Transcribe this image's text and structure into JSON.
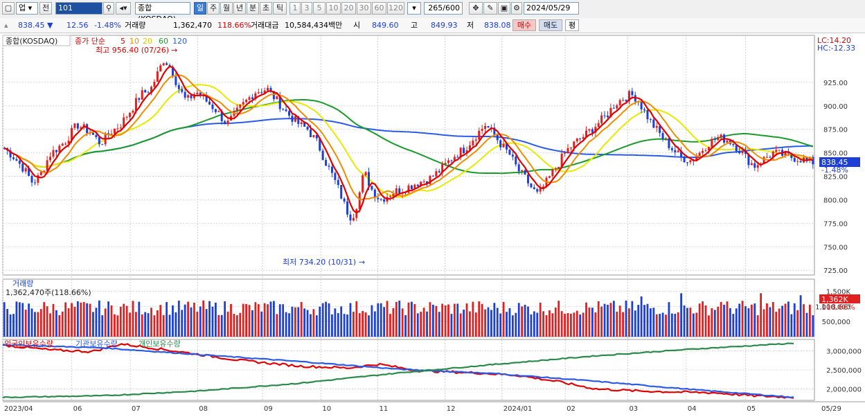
{
  "toolbar": {
    "market": "업",
    "market_prev": "전",
    "code": "101",
    "index_name": "종합(KOSDAQ)",
    "periods": [
      "일",
      "주",
      "월",
      "년",
      "분",
      "초",
      "틱"
    ],
    "selected_period": "일",
    "intervals": [
      "1",
      "3",
      "5",
      "10",
      "20",
      "30",
      "60",
      "120"
    ],
    "count": "265/600",
    "date": "2024/05/29"
  },
  "quote": {
    "price": "838.45",
    "arrow": "▼",
    "change": "12.56",
    "change_pct": "-1.48%",
    "volume_label": "거래량",
    "volume": "1,362,470",
    "volume_pct": "118.66%",
    "amount_label": "거래대금",
    "amount": "10,584,434백만",
    "open_label": "시",
    "open": "849.60",
    "high_label": "고",
    "high": "849.93",
    "low_label": "저",
    "low": "838.08",
    "buy_label": "매수",
    "sell_label": "매도",
    "eval_label": "평"
  },
  "price_panel": {
    "title": "종합(KOSDAQ)",
    "ma_label": "종가 단순",
    "ma_periods": [
      "5",
      "10",
      "20",
      "60",
      "120"
    ],
    "ma_colors": [
      "#e00000",
      "#f08c00",
      "#e8e800",
      "#1a9a2a",
      "#2a5ae8"
    ],
    "high_note": "최고 956.40 (07/26)",
    "low_note": "최저 734.20 (10/31)",
    "lc": "LC:14.20",
    "hc": "HC:-12.33",
    "last_price": "838.45",
    "last_pct": "-1.48%"
  },
  "volume_panel": {
    "title": "거래량",
    "value_note": "1,362,470주(118.66%)",
    "last": "1,362K",
    "last_pct": "118.66%"
  },
  "flow_panel": {
    "series": [
      {
        "name": "외국인보유수량",
        "color": "#e00000"
      },
      {
        "name": "기관보유수량",
        "color": "#2a5ae8"
      },
      {
        "name": "개인보유수량",
        "color": "#2a8a4a"
      }
    ]
  },
  "chart_data": {
    "type": "candlestick",
    "x_labels": [
      "2023/04",
      "06",
      "07",
      "08",
      "09",
      "10",
      "11",
      "12",
      "2024/01",
      "02",
      "03",
      "04",
      "05",
      "05/29"
    ],
    "y_price_ticks": [
      "925.00",
      "900.00",
      "875.00",
      "850.00",
      "825.00",
      "800.00",
      "775.00",
      "750.00",
      "725.00"
    ],
    "y_volume_ticks": [
      "1,500K",
      "1,000,000",
      "500,000"
    ],
    "y_flow_ticks": [
      "3,000,000",
      "2,500,000",
      "2,000,000"
    ],
    "price_range": [
      720,
      975
    ],
    "volume_range": [
      0,
      1900000
    ],
    "flow_range": [
      1700000,
      3300000
    ],
    "price_path": [
      [
        0,
        855
      ],
      [
        10,
        845
      ],
      [
        20,
        832
      ],
      [
        28,
        818
      ],
      [
        35,
        825
      ],
      [
        45,
        848
      ],
      [
        60,
        862
      ],
      [
        72,
        880
      ],
      [
        85,
        872
      ],
      [
        95,
        860
      ],
      [
        105,
        872
      ],
      [
        115,
        880
      ],
      [
        128,
        900
      ],
      [
        135,
        912
      ],
      [
        145,
        918
      ],
      [
        158,
        950
      ],
      [
        165,
        940
      ],
      [
        172,
        920
      ],
      [
        180,
        905
      ],
      [
        190,
        915
      ],
      [
        200,
        905
      ],
      [
        210,
        895
      ],
      [
        220,
        880
      ],
      [
        235,
        900
      ],
      [
        248,
        915
      ],
      [
        260,
        918
      ],
      [
        270,
        905
      ],
      [
        280,
        892
      ],
      [
        292,
        880
      ],
      [
        300,
        875
      ],
      [
        310,
        860
      ],
      [
        318,
        840
      ],
      [
        325,
        825
      ],
      [
        332,
        808
      ],
      [
        338,
        790
      ],
      [
        344,
        780
      ],
      [
        350,
        800
      ],
      [
        356,
        830
      ],
      [
        364,
        810
      ],
      [
        372,
        800
      ],
      [
        384,
        808
      ],
      [
        396,
        812
      ],
      [
        408,
        818
      ],
      [
        420,
        822
      ],
      [
        432,
        832
      ],
      [
        444,
        846
      ],
      [
        456,
        855
      ],
      [
        466,
        868
      ],
      [
        476,
        880
      ],
      [
        484,
        870
      ],
      [
        492,
        858
      ],
      [
        500,
        848
      ],
      [
        508,
        832
      ],
      [
        516,
        822
      ],
      [
        522,
        812
      ],
      [
        528,
        805
      ],
      [
        536,
        818
      ],
      [
        546,
        835
      ],
      [
        556,
        852
      ],
      [
        566,
        862
      ],
      [
        576,
        870
      ],
      [
        586,
        880
      ],
      [
        596,
        890
      ],
      [
        604,
        902
      ],
      [
        612,
        908
      ],
      [
        620,
        912
      ],
      [
        626,
        908
      ],
      [
        632,
        896
      ],
      [
        640,
        882
      ],
      [
        650,
        868
      ],
      [
        660,
        855
      ],
      [
        670,
        845
      ],
      [
        680,
        842
      ],
      [
        688,
        850
      ],
      [
        696,
        860
      ],
      [
        706,
        866
      ],
      [
        716,
        864
      ],
      [
        726,
        855
      ],
      [
        736,
        842
      ],
      [
        742,
        836
      ],
      [
        750,
        842
      ],
      [
        760,
        850
      ],
      [
        770,
        848
      ],
      [
        780,
        845
      ],
      [
        790,
        843
      ],
      [
        800,
        840
      ]
    ],
    "foreign_path": [
      [
        0,
        3150000
      ],
      [
        25,
        3020000
      ],
      [
        45,
        2980000
      ],
      [
        60,
        3180000
      ],
      [
        75,
        3080000
      ],
      [
        100,
        2900000
      ],
      [
        120,
        2750000
      ],
      [
        150,
        2600000
      ],
      [
        175,
        2550000
      ],
      [
        190,
        2650000
      ],
      [
        210,
        2480000
      ],
      [
        240,
        2420000
      ],
      [
        260,
        2360000
      ],
      [
        280,
        2200000
      ],
      [
        300,
        2000000
      ],
      [
        320,
        1950000
      ],
      [
        340,
        1920000
      ],
      [
        360,
        1900000
      ],
      [
        380,
        1820000
      ],
      [
        400,
        1780000
      ]
    ],
    "institution_path": [
      [
        0,
        3160000
      ],
      [
        50,
        3080000
      ],
      [
        100,
        2900000
      ],
      [
        150,
        2720000
      ],
      [
        200,
        2520000
      ],
      [
        250,
        2400000
      ],
      [
        300,
        2200000
      ],
      [
        350,
        1980000
      ],
      [
        400,
        1780000
      ]
    ],
    "individual_path": [
      [
        0,
        1780000
      ],
      [
        50,
        1820000
      ],
      [
        100,
        1950000
      ],
      [
        150,
        2150000
      ],
      [
        200,
        2420000
      ],
      [
        250,
        2650000
      ],
      [
        300,
        2870000
      ],
      [
        350,
        3050000
      ],
      [
        400,
        3200000
      ]
    ]
  }
}
